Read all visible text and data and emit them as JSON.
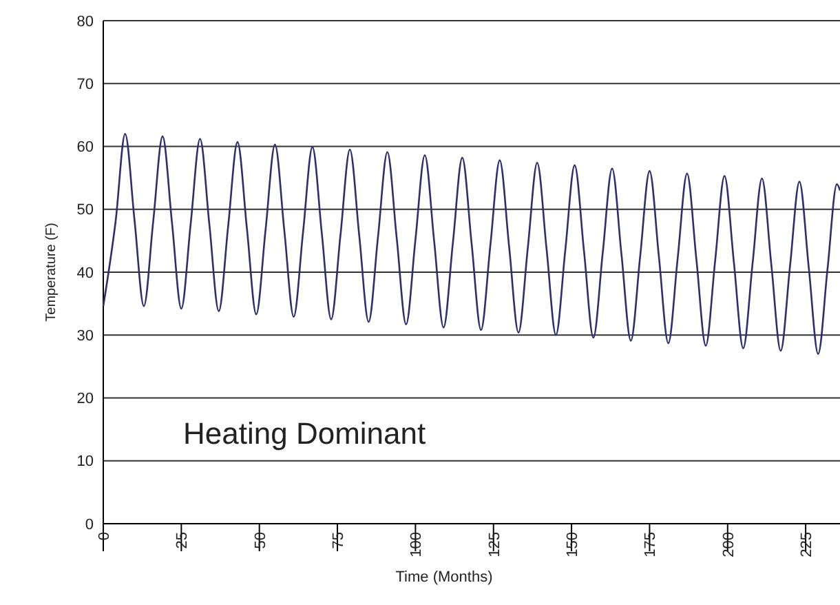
{
  "chart_data": {
    "type": "line",
    "xlabel": "Time (Months)",
    "ylabel": "Temperature (F)",
    "annotations": [
      "Heating Dominant"
    ],
    "x": [
      0,
      4,
      7,
      10,
      13,
      16,
      19,
      22,
      25,
      28,
      31,
      34,
      37,
      40,
      43,
      46,
      49,
      52,
      55,
      58,
      61,
      64,
      67,
      70,
      73,
      76,
      79,
      82,
      85,
      88,
      91,
      94,
      97,
      100,
      103,
      106,
      109,
      112,
      115,
      118,
      121,
      124,
      127,
      130,
      133,
      136,
      139,
      142,
      145,
      148,
      151,
      154,
      157,
      160,
      163,
      166,
      169,
      172,
      175,
      178,
      181,
      184,
      187,
      190,
      193,
      196,
      199,
      202,
      205,
      208,
      211,
      214,
      217,
      220,
      223,
      226,
      229,
      232,
      235,
      236
    ],
    "series": [
      {
        "color": "#2e2e6e",
        "values": [
          34.6,
          48.3,
          62,
          48.3,
          34.6,
          48.1,
          61.6,
          47.9,
          34.2,
          47.7,
          61.2,
          47.5,
          33.8,
          47.3,
          60.7,
          47,
          33.3,
          46.8,
          60.3,
          46.6,
          32.9,
          46.4,
          59.9,
          46.2,
          32.5,
          46,
          59.5,
          45.8,
          32.1,
          45.6,
          59.1,
          45.4,
          31.7,
          45.2,
          58.6,
          44.9,
          31.2,
          44.7,
          58.2,
          44.5,
          30.8,
          44.3,
          57.8,
          44.1,
          30.4,
          43.9,
          57.4,
          43.7,
          30,
          43.5,
          57,
          43.3,
          29.6,
          43.1,
          56.5,
          42.8,
          29.1,
          42.6,
          56.1,
          42.4,
          28.7,
          42.2,
          55.7,
          42,
          28.3,
          41.8,
          55.3,
          41.6,
          27.9,
          41.4,
          54.9,
          41.2,
          27.5,
          41,
          54.4,
          40.7,
          27,
          40.5,
          54,
          53
        ]
      }
    ],
    "xlim": [
      0,
      236
    ],
    "xticks": [
      0,
      25,
      50,
      75,
      100,
      125,
      150,
      175,
      200,
      225
    ],
    "ylim": [
      0,
      80
    ],
    "yticks": [
      0,
      10,
      20,
      30,
      40,
      50,
      60,
      70,
      80
    ],
    "grid": "y",
    "marker": "none",
    "line_style": "solid"
  }
}
